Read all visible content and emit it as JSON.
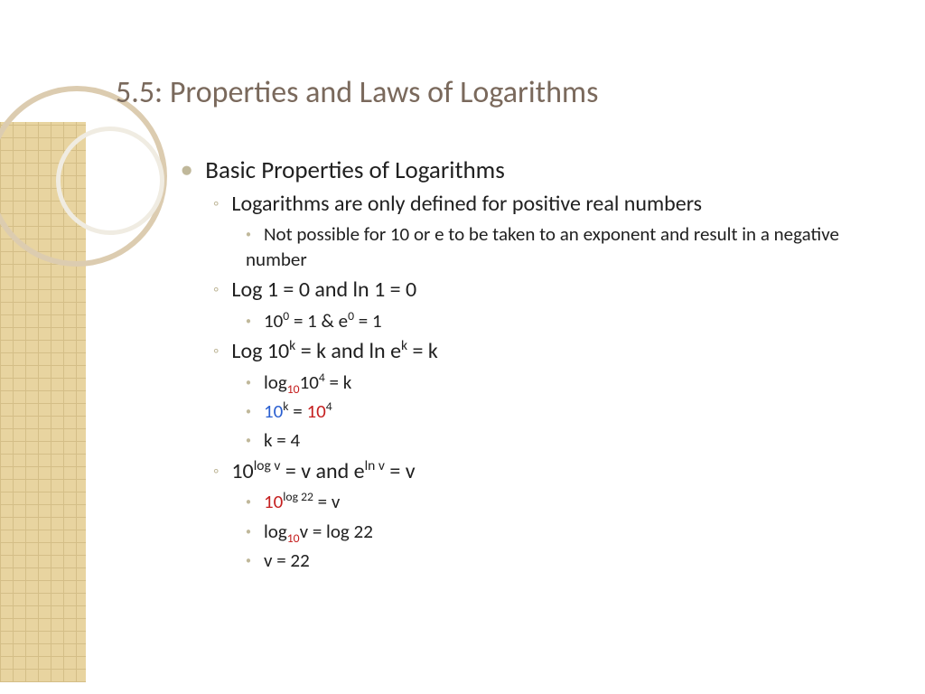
{
  "colors": {
    "title": "#7a695c",
    "bullet": "#c0b89a",
    "text": "#202020",
    "blue": "#2a5fd0",
    "red": "#c52020",
    "pattern_bg": "#e8d4a0",
    "pattern_grid": "#d4be87",
    "circle_outer": "#dcccb0",
    "circle_inner": "#f0ece2",
    "background": "#ffffff"
  },
  "fonts": {
    "title_size": 34,
    "l1_size": 27,
    "l2_size": 24,
    "l3_size": 21
  },
  "title": "5.5: Properties and Laws of Logarithms",
  "items": [
    {
      "level": 1,
      "html": "Basic Properties of Logarithms"
    },
    {
      "level": 2,
      "html": "Logarithms are only defined for positive real numbers"
    },
    {
      "level": 3,
      "html": "Not possible for 10 or e to be taken to an exponent and result in a negative number"
    },
    {
      "level": 2,
      "html": "Log 1 = 0 and ln 1 = 0"
    },
    {
      "level": 3,
      "html": "10<sup>0</sup> = 1 &amp; e<sup>0</sup> = 1"
    },
    {
      "level": 2,
      "html": "Log 10<sup>k</sup> = k and ln e<sup>k</sup> = k"
    },
    {
      "level": 3,
      "html": "log<sub class=\"red\">10</sub>10<sup>4</sup> = k"
    },
    {
      "level": 3,
      "html": "<span class=\"blue\">10</span><sup>k</sup> = <span class=\"red\">10</span><sup>4</sup>"
    },
    {
      "level": 3,
      "html": "k = 4"
    },
    {
      "level": 2,
      "html": "10<sup>log v</sup> = v and e<sup>ln v</sup> = v"
    },
    {
      "level": 3,
      "html": "<span class=\"red\">10</span><sup>log 22</sup> = v"
    },
    {
      "level": 3,
      "html": "log<sub class=\"red\">10</sub>v = log 22"
    },
    {
      "level": 3,
      "html": "v = 22"
    }
  ],
  "bullets": {
    "l1": "●",
    "l2": "◦",
    "l3": "•"
  }
}
